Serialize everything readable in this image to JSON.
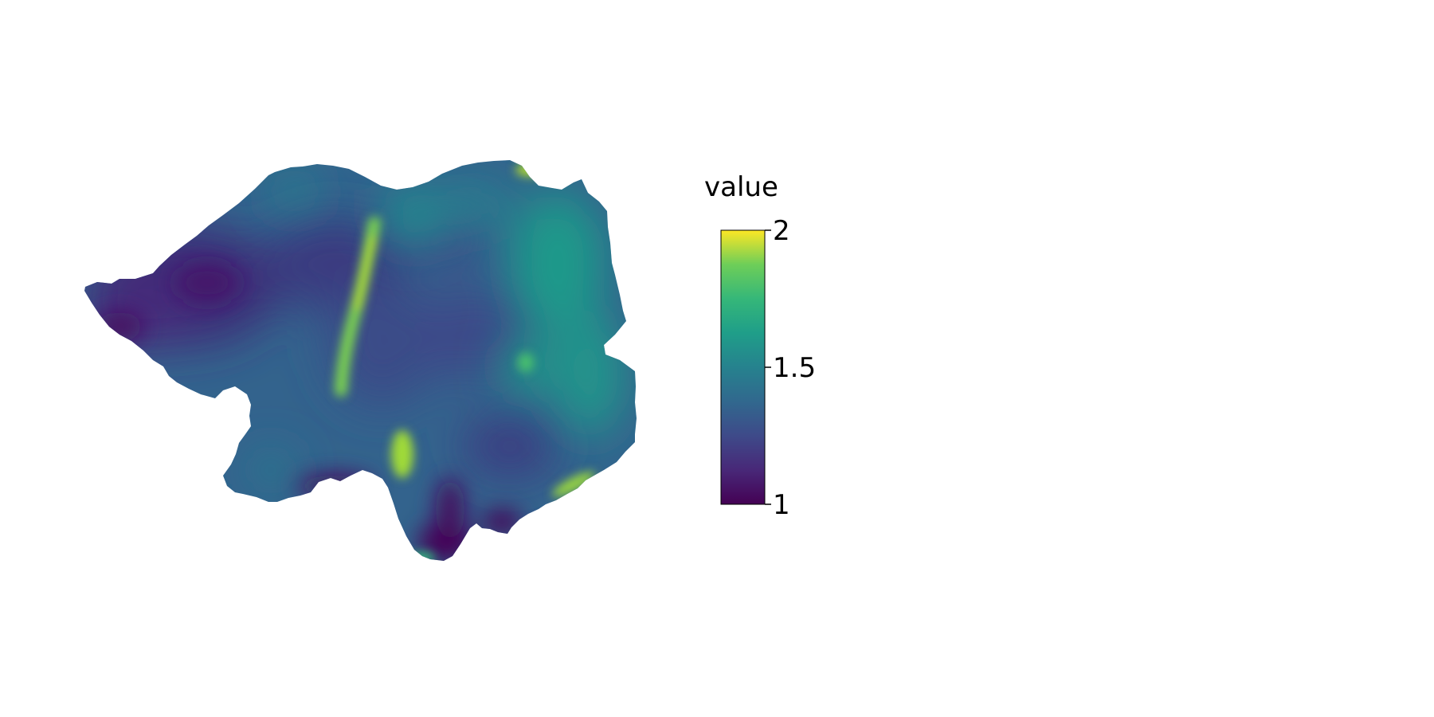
{
  "map": {
    "description_type": "raster choropleth of a single region",
    "colormap": "viridis",
    "colors": {
      "low": "#440154",
      "mid": "#21918c",
      "high": "#fde725",
      "background": "#ffffff"
    }
  },
  "colorbar": {
    "title": "value",
    "min": 1,
    "max": 2,
    "ticks": [
      {
        "value": 2,
        "label": "2"
      },
      {
        "value": 1.5,
        "label": "1.5"
      },
      {
        "value": 1,
        "label": "1"
      }
    ]
  }
}
